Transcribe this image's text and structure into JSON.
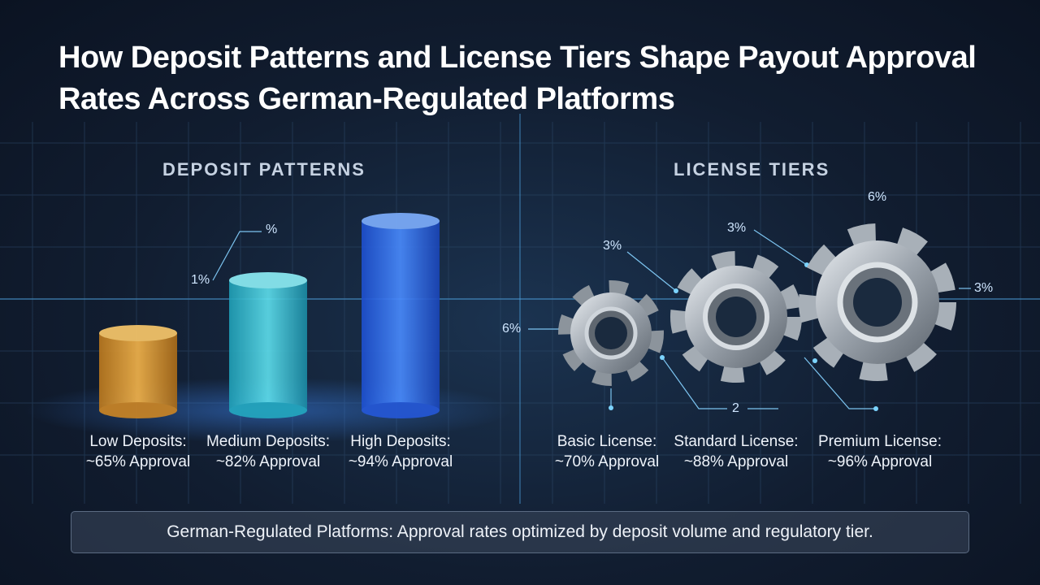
{
  "header": {
    "title": "How Deposit Patterns and License Tiers Shape Payout Approval Rates Across German-Regulated Platforms"
  },
  "deposit_patterns": {
    "heading": "DEPOSIT PATTERNS",
    "items": [
      {
        "name": "Low Deposits:",
        "approval": "~65% Approval"
      },
      {
        "name": "Medium Deposits:",
        "approval": "~82% Approval"
      },
      {
        "name": "High Deposits:",
        "approval": "~94% Approval"
      }
    ],
    "annotations": [
      "%",
      "1%"
    ]
  },
  "license_tiers": {
    "heading": "LICENSE TIERS",
    "items": [
      {
        "name": "Basic License:",
        "approval": "~70% Approval"
      },
      {
        "name": "Standard License:",
        "approval": "~88% Approval"
      },
      {
        "name": "Premium License:",
        "approval": "~96% Approval"
      }
    ],
    "annotations": [
      "6%",
      "3%",
      "3%",
      "6%",
      "3%",
      "2"
    ]
  },
  "footer": {
    "text": "German-Regulated Platforms: Approval rates optimized by deposit volume and regulatory tier."
  }
}
